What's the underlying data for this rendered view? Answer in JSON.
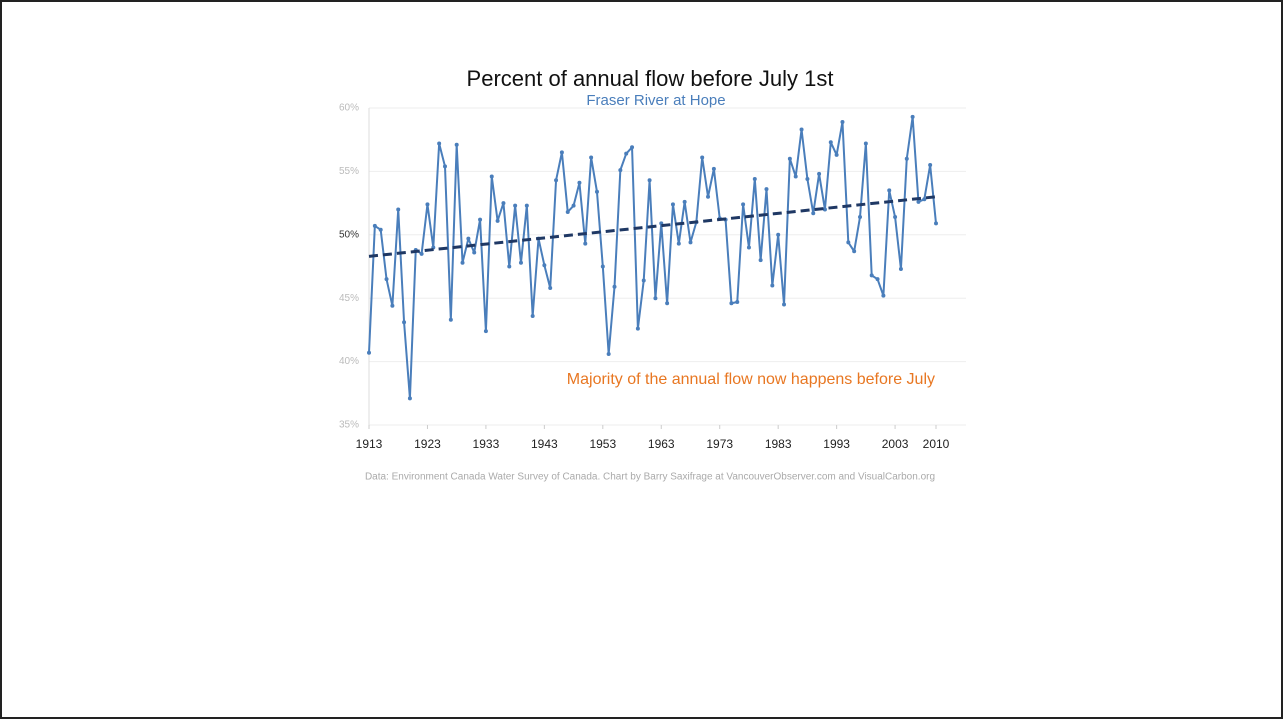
{
  "chart_data": {
    "type": "line",
    "title": "Percent of annual flow before July 1st",
    "subtitle": "Fraser River at Hope",
    "annotation": "Majority of the annual flow now happens before July",
    "source": "Data: Environment Canada Water Survey of Canada. Chart by Barry Saxifrage at VancouverObserver.com and VisualCarbon.org",
    "x": [
      1913,
      1914,
      1915,
      1916,
      1917,
      1918,
      1919,
      1920,
      1921,
      1922,
      1923,
      1924,
      1925,
      1926,
      1927,
      1928,
      1929,
      1930,
      1931,
      1932,
      1933,
      1934,
      1935,
      1936,
      1937,
      1938,
      1939,
      1940,
      1941,
      1942,
      1943,
      1944,
      1945,
      1946,
      1947,
      1948,
      1949,
      1950,
      1951,
      1952,
      1953,
      1954,
      1955,
      1956,
      1957,
      1958,
      1959,
      1960,
      1961,
      1962,
      1963,
      1964,
      1965,
      1966,
      1967,
      1968,
      1969,
      1970,
      1971,
      1972,
      1973,
      1974,
      1975,
      1976,
      1977,
      1978,
      1979,
      1980,
      1981,
      1982,
      1983,
      1984,
      1985,
      1986,
      1987,
      1988,
      1989,
      1990,
      1991,
      1992,
      1993,
      1994,
      1995,
      1996,
      1997,
      1998,
      1999,
      2000,
      2001,
      2002,
      2003,
      2004,
      2005,
      2006,
      2007,
      2008,
      2009,
      2010
    ],
    "series": [
      {
        "color": "#4a7ebb",
        "values": [
          40.7,
          50.7,
          50.4,
          46.5,
          44.4,
          52,
          43.1,
          37.1,
          48.8,
          48.5,
          52.4,
          49,
          57.2,
          55.4,
          43.3,
          57.1,
          47.8,
          49.7,
          48.6,
          51.2,
          42.4,
          54.6,
          51.1,
          52.5,
          47.5,
          52.3,
          47.8,
          52.3,
          43.6,
          49.7,
          47.6,
          45.8,
          54.3,
          56.5,
          51.8,
          52.3,
          54.1,
          49.3,
          56.1,
          53.4,
          47.5,
          40.6,
          45.9,
          55.1,
          56.4,
          56.9,
          42.6,
          46.4,
          54.3,
          45,
          50.9,
          44.6,
          52.4,
          49.3,
          52.6,
          49.4,
          51,
          56.1,
          53,
          55.2,
          51.3,
          51.2,
          44.6,
          44.7,
          52.4,
          49,
          54.4,
          48,
          53.6,
          46,
          50,
          44.5,
          56,
          54.6,
          58.3,
          54.4,
          51.7,
          54.8,
          52,
          57.3,
          56.3,
          58.9,
          49.4,
          48.7,
          51.4,
          57.2,
          46.8,
          46.5,
          45.2,
          53.5,
          51.4,
          47.3,
          56,
          59.3,
          52.6,
          52.8,
          55.5,
          50.9
        ]
      }
    ],
    "trendline": {
      "color": "#1f3864",
      "x": [
        1913,
        2010
      ],
      "values": [
        48.3,
        53.0
      ]
    },
    "xlim": [
      1913,
      2010
    ],
    "xticks": [
      1913,
      1923,
      1933,
      1943,
      1953,
      1963,
      1973,
      1983,
      1993,
      2003,
      2010
    ],
    "ylim": [
      35,
      60
    ],
    "yticks": [
      {
        "value": 35,
        "label": "35%"
      },
      {
        "value": 40,
        "label": "40%"
      },
      {
        "value": 45,
        "label": "45%"
      },
      {
        "value": 50,
        "label": "50%"
      },
      {
        "value": 55,
        "label": "55%"
      },
      {
        "value": 60,
        "label": "60%"
      }
    ],
    "grid": true
  }
}
